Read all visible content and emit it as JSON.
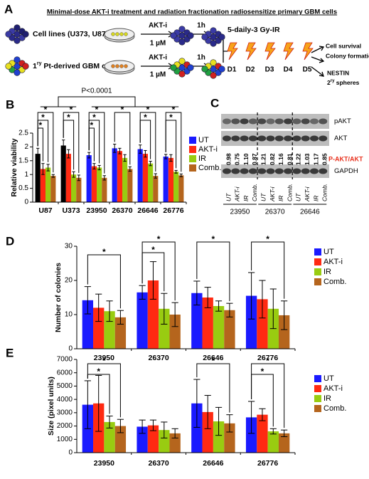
{
  "panel_a": {
    "label": "A",
    "title": "Minimal-dose AKT-i treatment and radiation fractionation radiosensitize primary GBM cells",
    "row1_cells": "Cell lines (U373, U87)",
    "row2_prefix": "1",
    "row2_sup": "ry",
    "row2_rest": " Pt-derived GBM cells",
    "drug": [
      "AKT-i",
      "AKT-i"
    ],
    "dose": [
      "1 µM",
      "1 µM"
    ],
    "time": [
      "1h",
      "1h"
    ],
    "regimen": "5-daily-3 Gy-IR",
    "days": [
      "D1",
      "D2",
      "D3",
      "D4",
      "D5"
    ],
    "outcomes": [
      "Cell survival",
      "Colony formation",
      "NESTIN"
    ],
    "sphere_prefix": "2",
    "sphere_sup": "ry",
    "sphere_rest": " spheres"
  },
  "panel_c": {
    "label": "C",
    "bands": [
      "pAKT",
      "AKT",
      "GAPDH"
    ],
    "ratios": [
      "0.98",
      "0.75",
      "1.10",
      "0.87",
      "1.21",
      "0.82",
      "1.16",
      "0.81",
      "1.22",
      "1.03",
      "1.17",
      "0.85"
    ],
    "ratio_label": "P-AKT/AKT",
    "lanes": [
      "UT",
      "AKT-i",
      "IR",
      "Comb.",
      "UT",
      "AKT-i",
      "IR",
      "Comb.",
      "UT",
      "AKT-i",
      "IR",
      "Comb."
    ],
    "cell_lines": [
      "23950",
      "26370",
      "26646"
    ]
  },
  "chart_data": [
    {
      "type": "bar",
      "panel_label": "B",
      "y_label": "Relative viability",
      "annotation": "P<0.0001",
      "categories": [
        "U87",
        "U373",
        "23950",
        "26370",
        "26646",
        "26776"
      ],
      "series": [
        {
          "name": "UT",
          "color": "#1a1aff",
          "colors": [
            "#000000",
            "#000000",
            "#1a1aff",
            "#1a1aff",
            "#1a1aff",
            "#1a1aff"
          ],
          "values": [
            1.75,
            2.05,
            1.7,
            1.95,
            1.92,
            1.65
          ],
          "errors": [
            0.2,
            0.2,
            0.1,
            0.15,
            0.15,
            0.08
          ]
        },
        {
          "name": "AKT-i",
          "color": "#ff2a12",
          "values": [
            1.2,
            1.75,
            1.3,
            1.85,
            1.75,
            1.6
          ],
          "errors": [
            0.2,
            0.15,
            0.1,
            0.1,
            0.12,
            0.12
          ]
        },
        {
          "name": "IR",
          "color": "#99cc11",
          "values": [
            1.25,
            1.0,
            1.25,
            1.6,
            1.4,
            1.1
          ],
          "errors": [
            0.12,
            0.1,
            0.08,
            0.12,
            0.08,
            0.05
          ]
        },
        {
          "name": "Comb.",
          "color": "#b5651d",
          "values": [
            0.95,
            0.88,
            0.88,
            1.2,
            0.95,
            0.97
          ],
          "errors": [
            0.05,
            0.1,
            0.08,
            0.08,
            0.08,
            0.05
          ]
        }
      ],
      "ylim": [
        0,
        2.5
      ],
      "yticks": [
        0,
        0.5,
        1,
        1.5,
        2,
        2.5
      ],
      "grid": false,
      "legend": "right",
      "significance": [
        "*",
        "*",
        "*",
        "*",
        "*",
        "*",
        "*",
        "*",
        "*",
        "*",
        "*",
        "*",
        "*"
      ]
    },
    {
      "type": "bar",
      "panel_label": "D",
      "y_label": "Number of colonies",
      "categories": [
        "23950",
        "26370",
        "26646",
        "26776"
      ],
      "series": [
        {
          "name": "UT",
          "color": "#1a1aff",
          "values": [
            14.2,
            16.5,
            16.3,
            15.5
          ],
          "errors": [
            4,
            2,
            3.5,
            6.8
          ]
        },
        {
          "name": "AKT-i",
          "color": "#ff2a12",
          "values": [
            12,
            20,
            15,
            14.5
          ],
          "errors": [
            4,
            5.5,
            3,
            5.5
          ]
        },
        {
          "name": "IR",
          "color": "#99cc11",
          "values": [
            11,
            11.7,
            12.5,
            11.7
          ],
          "errors": [
            3,
            4.5,
            1.5,
            5.8
          ]
        },
        {
          "name": "Comb.",
          "color": "#b5651d",
          "values": [
            9.2,
            10,
            11.3,
            9.8
          ],
          "errors": [
            2,
            3.5,
            2,
            4.2
          ]
        }
      ],
      "ylim": [
        0,
        30
      ],
      "yticks": [
        0,
        10,
        20,
        30
      ],
      "grid": false,
      "legend": "right",
      "significance": [
        "*",
        "*",
        "*",
        "*",
        "*"
      ]
    },
    {
      "type": "bar",
      "panel_label": "E",
      "y_label": "Size (pixel units)",
      "categories": [
        "23950",
        "26370",
        "26646",
        "26776"
      ],
      "series": [
        {
          "name": "UT",
          "color": "#1a1aff",
          "values": [
            3600,
            1950,
            3700,
            2650
          ],
          "errors": [
            1800,
            500,
            1800,
            1200
          ]
        },
        {
          "name": "AKT-i",
          "color": "#ff2a12",
          "values": [
            3700,
            2050,
            3050,
            2850
          ],
          "errors": [
            2100,
            400,
            1250,
            450
          ]
        },
        {
          "name": "IR",
          "color": "#99cc11",
          "values": [
            2300,
            1700,
            2350,
            1600
          ],
          "errors": [
            450,
            600,
            1050,
            200
          ]
        },
        {
          "name": "Comb.",
          "color": "#b5651d",
          "values": [
            2000,
            1450,
            2200,
            1450
          ],
          "errors": [
            500,
            350,
            650,
            250
          ]
        }
      ],
      "ylim": [
        0,
        7000
      ],
      "yticks": [
        0,
        1000,
        2000,
        3000,
        4000,
        5000,
        6000,
        7000
      ],
      "grid": false,
      "legend": "right",
      "significance": [
        "*",
        "*",
        "*",
        "*",
        "*"
      ]
    }
  ]
}
